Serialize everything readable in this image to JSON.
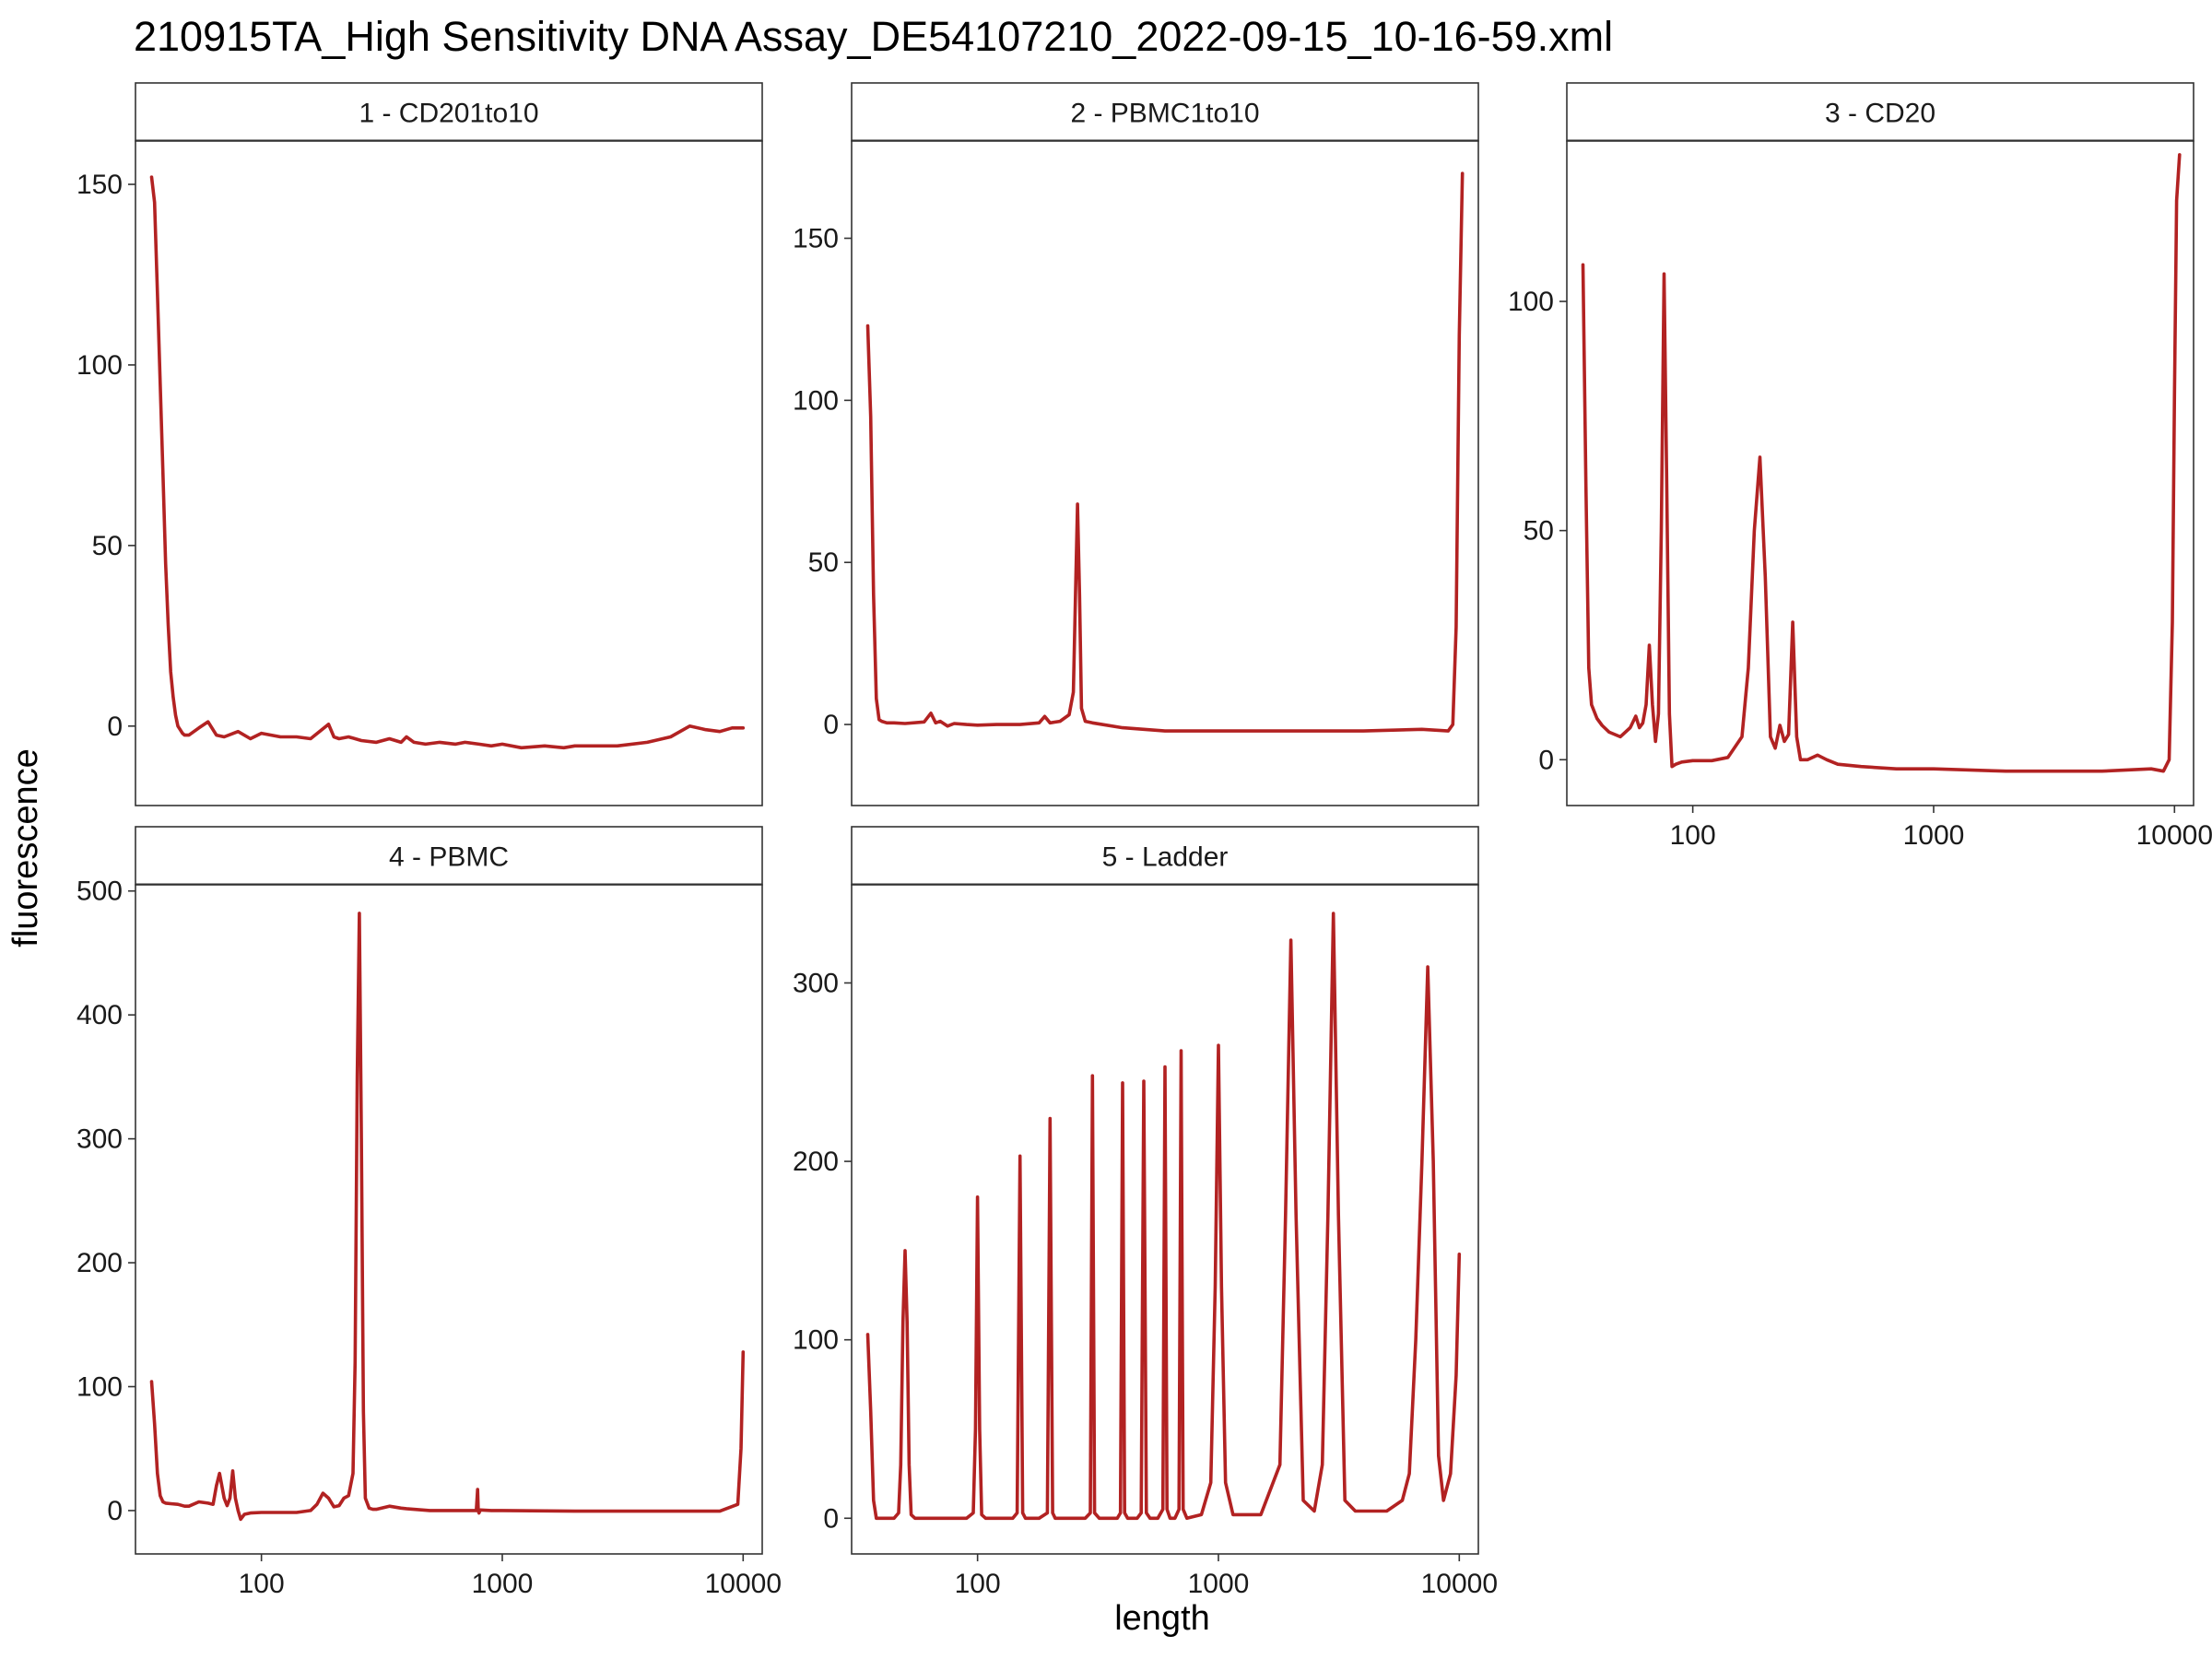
{
  "chart_data": {
    "type": "line",
    "title": "210915TA_High Sensitivity DNA Assay_DE54107210_2022-09-15_10-16-59.xml",
    "xlabel": "length",
    "ylabel": "fluorescence",
    "x_scale": "log10",
    "xlim": [
      30,
      12000
    ],
    "x_ticks": [
      100,
      1000,
      10000
    ],
    "x_tick_labels": [
      "100",
      "1000",
      "10000"
    ],
    "line_color": "#b22222",
    "grid": false,
    "panels": [
      {
        "label": "1 - CD201to10",
        "ylim": [
          -22,
          162
        ],
        "y_ticks": [
          0,
          50,
          100,
          150
        ],
        "y_tick_labels": [
          "0",
          "50",
          "100",
          "150"
        ],
        "x": [
          35,
          36,
          37,
          38,
          39,
          40,
          41,
          42,
          43,
          44,
          45,
          46,
          47,
          48,
          50,
          55,
          60,
          65,
          70,
          80,
          90,
          100,
          120,
          140,
          160,
          190,
          200,
          210,
          230,
          260,
          300,
          340,
          380,
          400,
          430,
          480,
          550,
          640,
          700,
          800,
          900,
          1000,
          1200,
          1500,
          1800,
          2000,
          2500,
          3000,
          4000,
          5000,
          6000,
          7000,
          8000,
          9000,
          10000
        ],
        "y": [
          152,
          145,
          120,
          95,
          70,
          45,
          28,
          15,
          8,
          3,
          0,
          -1,
          -2,
          -2.5,
          -2.5,
          -0.5,
          1.2,
          -2.5,
          -3,
          -1.5,
          -3.5,
          -2,
          -3,
          -3,
          -3.5,
          0.5,
          -3,
          -3.5,
          -3,
          -4,
          -4.5,
          -3.5,
          -4.5,
          -3,
          -4.5,
          -5,
          -4.5,
          -5,
          -4.5,
          -5,
          -5.5,
          -5,
          -6,
          -5.5,
          -6,
          -5.5,
          -5.5,
          -5.5,
          -4.5,
          -3,
          0,
          -1,
          -1.5,
          -0.5,
          -0.5
        ]
      },
      {
        "label": "2 - PBMC1to10",
        "ylim": [
          -25,
          180
        ],
        "y_ticks": [
          0,
          50,
          100,
          150
        ],
        "y_tick_labels": [
          "0",
          "50",
          "100",
          "150"
        ],
        "x": [
          35,
          36,
          37,
          38,
          39,
          40,
          42,
          45,
          50,
          60,
          64,
          67,
          70,
          75,
          80,
          90,
          100,
          120,
          150,
          180,
          190,
          200,
          220,
          240,
          250,
          255,
          260,
          265,
          270,
          280,
          300,
          400,
          600,
          1000,
          2000,
          4000,
          7000,
          9000,
          9400,
          9700,
          10000,
          10300
        ],
        "y": [
          123,
          95,
          40,
          8,
          1.5,
          1,
          0.5,
          0.5,
          0.3,
          0.8,
          3.5,
          0.5,
          1,
          -0.5,
          0.3,
          0,
          -0.2,
          0,
          0,
          0.5,
          2.5,
          0.5,
          1,
          3,
          10,
          40,
          68,
          40,
          5,
          1,
          0.5,
          -1,
          -2,
          -2,
          -2,
          -2,
          -1.5,
          -2,
          0,
          30,
          120,
          170
        ]
      },
      {
        "label": "3 - CD20",
        "ylim": [
          -10,
          135
        ],
        "y_ticks": [
          0,
          50,
          100
        ],
        "y_tick_labels": [
          "0",
          "50",
          "100"
        ],
        "x": [
          35,
          36,
          37,
          38,
          40,
          42,
          45,
          50,
          55,
          58,
          60,
          62,
          64,
          66,
          68,
          70,
          72,
          74,
          76,
          78,
          80,
          82,
          85,
          90,
          100,
          120,
          140,
          160,
          170,
          180,
          190,
          200,
          210,
          220,
          230,
          240,
          250,
          260,
          270,
          280,
          300,
          330,
          360,
          400,
          500,
          700,
          1000,
          2000,
          3000,
          5000,
          8000,
          9000,
          9500,
          9800,
          10000,
          10200,
          10500
        ],
        "y": [
          108,
          60,
          20,
          12,
          9,
          7.5,
          6,
          5,
          7,
          9.5,
          7,
          8,
          12,
          25,
          12,
          4,
          10,
          50,
          106,
          60,
          10,
          -1.5,
          -1,
          -0.5,
          -0.2,
          -0.2,
          0.5,
          5,
          20,
          50,
          66,
          40,
          5,
          2.5,
          7.5,
          4,
          5.5,
          30,
          5,
          0,
          0,
          1,
          0,
          -1,
          -1.5,
          -2,
          -2,
          -2.5,
          -2.5,
          -2.5,
          -2,
          -2.5,
          0,
          30,
          80,
          122,
          132
        ]
      },
      {
        "label": "4 - PBMC",
        "ylim": [
          -35,
          505
        ],
        "y_ticks": [
          0,
          100,
          200,
          300,
          400,
          500
        ],
        "y_tick_labels": [
          "0",
          "100",
          "200",
          "300",
          "400",
          "500"
        ],
        "x": [
          35,
          36,
          37,
          38,
          39,
          40,
          42,
          45,
          48,
          50,
          55,
          60,
          63,
          65,
          67,
          70,
          72,
          74,
          76,
          78,
          80,
          82,
          85,
          90,
          100,
          120,
          140,
          160,
          170,
          180,
          190,
          200,
          210,
          220,
          230,
          240,
          245,
          250,
          255,
          260,
          265,
          270,
          280,
          290,
          300,
          340,
          380,
          400,
          500,
          700,
          780,
          790,
          795,
          800,
          810,
          900,
          1000,
          2000,
          5000,
          8000,
          9500,
          9800,
          10000
        ],
        "y": [
          104,
          70,
          30,
          12,
          7,
          6,
          5.5,
          5,
          3.5,
          3.5,
          7,
          6,
          5,
          20,
          30,
          10,
          4,
          10,
          32,
          10,
          0,
          -7,
          -3,
          -2,
          -1.5,
          -1.5,
          -1.5,
          0,
          5,
          14,
          10,
          3,
          4,
          10,
          12,
          30,
          120,
          350,
          482,
          300,
          80,
          10,
          2,
          1,
          1,
          3.5,
          2,
          1.5,
          0,
          0,
          0,
          17,
          0,
          -2,
          0.5,
          0,
          0,
          -0.5,
          -0.5,
          -0.5,
          5,
          50,
          128
        ]
      },
      {
        "label": "5 - Ladder",
        "ylim": [
          -20,
          355
        ],
        "y_ticks": [
          0,
          100,
          200,
          300
        ],
        "y_tick_labels": [
          "0",
          "100",
          "200",
          "300"
        ],
        "x": [
          35,
          36,
          37,
          38,
          40,
          45,
          47,
          48,
          49,
          50,
          51,
          52,
          53,
          55,
          90,
          96,
          98,
          100,
          102,
          104,
          108,
          140,
          146,
          150,
          154,
          158,
          180,
          195,
          200,
          205,
          210,
          280,
          294,
          300,
          306,
          320,
          380,
          392,
          400,
          408,
          420,
          460,
          478,
          490,
          502,
          520,
          560,
          588,
          600,
          612,
          630,
          660,
          686,
          700,
          714,
          740,
          850,
          930,
          970,
          1000,
          1030,
          1070,
          1150,
          1500,
          1800,
          1900,
          2000,
          2100,
          2250,
          2500,
          2700,
          2850,
          3000,
          3150,
          3350,
          3700,
          4200,
          5000,
          5800,
          6200,
          6600,
          7000,
          7400,
          7800,
          8200,
          8600,
          9200,
          9700,
          10000
        ],
        "y": [
          103,
          60,
          10,
          0,
          0,
          0,
          3,
          30,
          110,
          150,
          110,
          30,
          2,
          0,
          0,
          3,
          50,
          180,
          50,
          2,
          0,
          0,
          3,
          203,
          3,
          0,
          0,
          3,
          224,
          3,
          0,
          0,
          3,
          248,
          3,
          0,
          0,
          3,
          244,
          3,
          0,
          0,
          3,
          245,
          3,
          0,
          0,
          5,
          253,
          5,
          0,
          0,
          5,
          262,
          5,
          0,
          2,
          20,
          130,
          265,
          130,
          20,
          2,
          2,
          30,
          170,
          324,
          170,
          10,
          4,
          30,
          170,
          339,
          170,
          10,
          4,
          4,
          4,
          10,
          25,
          100,
          200,
          309,
          200,
          35,
          10,
          25,
          80,
          148
        ]
      }
    ]
  }
}
